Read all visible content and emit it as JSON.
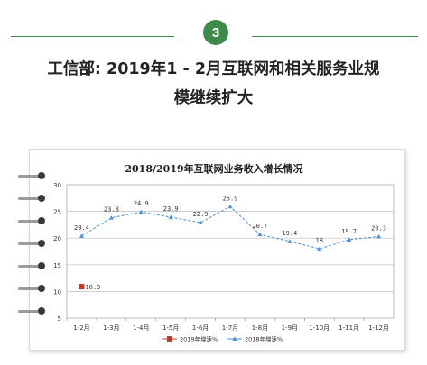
{
  "section": {
    "number": "3"
  },
  "headline": {
    "line1": "工信部: 2019年1 - 2月互联网和相关服务业规",
    "line2": "模继续扩大"
  },
  "colors": {
    "accent": "#3d8a4a",
    "series_2019": "#c0392b",
    "series_2018": "#4a90d9"
  },
  "chart_data": {
    "type": "line",
    "title": "2018/2019年互联网业务收入增长情况",
    "xlabel": "",
    "ylabel": "",
    "categories": [
      "1-2月",
      "1-3月",
      "1-4月",
      "1-5月",
      "1-6月",
      "1-7月",
      "1-8月",
      "1-9月",
      "1-10月",
      "1-11月",
      "1-12月"
    ],
    "ylim": [
      5,
      30
    ],
    "yticks": [
      "5",
      "10",
      "15",
      "20",
      "25",
      "30"
    ],
    "grid": true,
    "legend_position": "bottom",
    "series": [
      {
        "name": "2019年增速%",
        "marker": "square",
        "values": [
          10.9,
          null,
          null,
          null,
          null,
          null,
          null,
          null,
          null,
          null,
          null
        ]
      },
      {
        "name": "2018年增速%",
        "marker": "triangle",
        "values": [
          20.4,
          23.8,
          24.9,
          23.9,
          22.9,
          25.9,
          20.7,
          19.4,
          18,
          19.7,
          20.3
        ]
      }
    ],
    "data_labels": [
      {
        "series": 0,
        "index": 0,
        "text": "10.9"
      },
      {
        "series": 1,
        "index": 0,
        "text": "20.4"
      },
      {
        "series": 1,
        "index": 1,
        "text": "23.8"
      },
      {
        "series": 1,
        "index": 2,
        "text": "24.9"
      },
      {
        "series": 1,
        "index": 3,
        "text": "23.9"
      },
      {
        "series": 1,
        "index": 4,
        "text": "22.9"
      },
      {
        "series": 1,
        "index": 5,
        "text": "25.9"
      },
      {
        "series": 1,
        "index": 6,
        "text": "20.7"
      },
      {
        "series": 1,
        "index": 7,
        "text": "19.4"
      },
      {
        "series": 1,
        "index": 8,
        "text": "18"
      },
      {
        "series": 1,
        "index": 9,
        "text": "19.7"
      },
      {
        "series": 1,
        "index": 10,
        "text": "20.3"
      }
    ]
  }
}
